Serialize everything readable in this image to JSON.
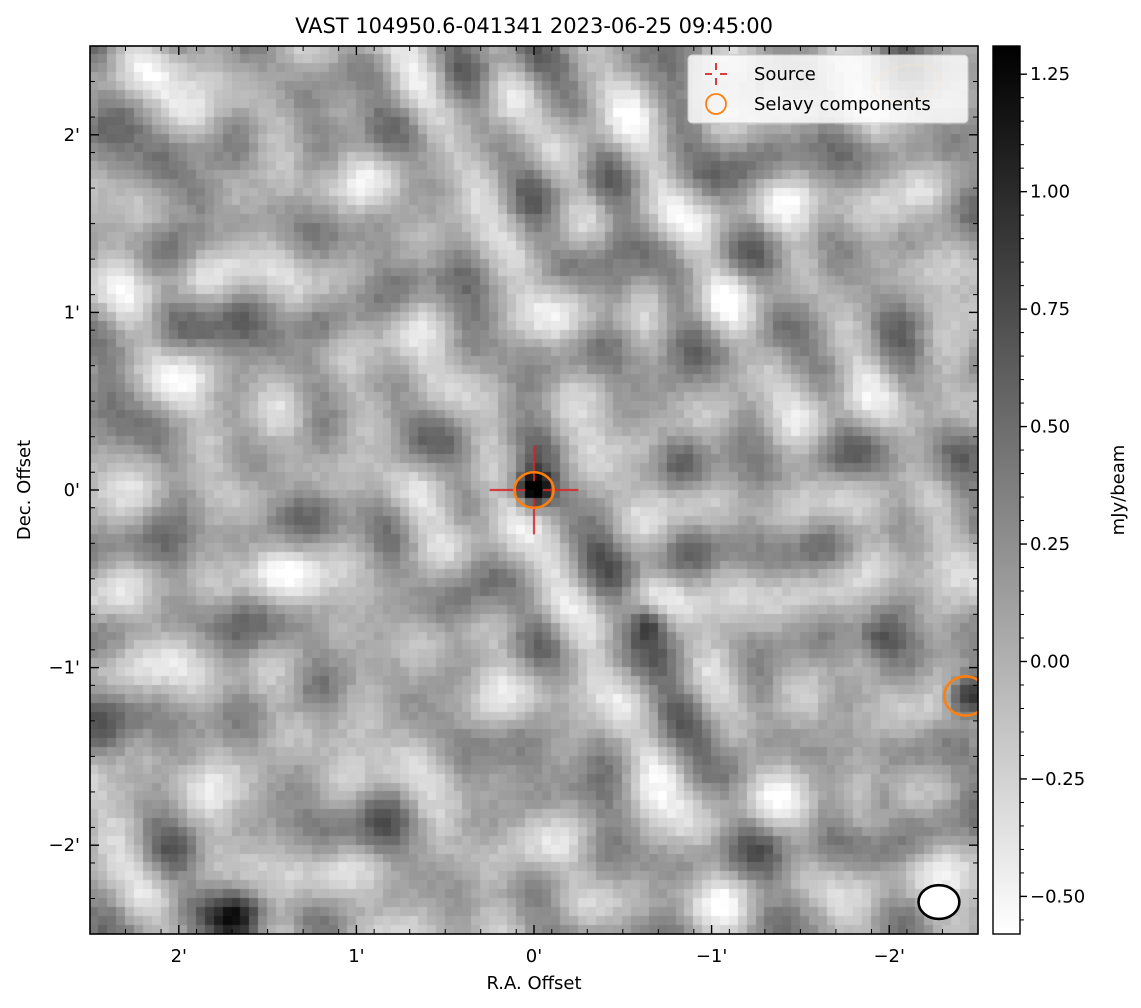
{
  "chart_data": {
    "type": "heatmap",
    "title": "VAST 104950.6-041341 2023-06-25 09:45:00",
    "xlabel": "R.A. Offset",
    "ylabel": "Dec. Offset",
    "xlim_arcmin": [
      2.5,
      -2.5
    ],
    "ylim_arcmin": [
      -2.5,
      2.5
    ],
    "x_ticks": [
      {
        "value": 2,
        "label": "2'"
      },
      {
        "value": 1,
        "label": "1'"
      },
      {
        "value": 0,
        "label": "0'"
      },
      {
        "value": -1,
        "label": "−1'"
      },
      {
        "value": -2,
        "label": "−2'"
      }
    ],
    "y_ticks": [
      {
        "value": 2,
        "label": "2'"
      },
      {
        "value": 1,
        "label": "1'"
      },
      {
        "value": 0,
        "label": "0'"
      },
      {
        "value": -1,
        "label": "−1'"
      },
      {
        "value": -2,
        "label": "−2'"
      }
    ],
    "colorbar": {
      "label": "mJy/beam",
      "range": [
        -0.58,
        1.31
      ],
      "cmap": "gray_r",
      "ticks": [
        {
          "value": 1.25,
          "label": "1.25"
        },
        {
          "value": 1.0,
          "label": "1.00"
        },
        {
          "value": 0.75,
          "label": "0.75"
        },
        {
          "value": 0.5,
          "label": "0.50"
        },
        {
          "value": 0.25,
          "label": "0.25"
        },
        {
          "value": 0.0,
          "label": "0.00"
        },
        {
          "value": -0.25,
          "label": "−0.25"
        },
        {
          "value": -0.5,
          "label": "−0.50"
        }
      ]
    },
    "legend": {
      "placement": "upper-right",
      "entries": [
        {
          "label": "Source",
          "marker": "plus",
          "color": "#d62728"
        },
        {
          "label": "Selavy components",
          "marker": "circle",
          "color": "#ff7f0e"
        }
      ]
    },
    "source": {
      "ra_offset": 0.0,
      "dec_offset": 0.0,
      "color": "#d62728",
      "arm_length": 0.25
    },
    "selavy_components": [
      {
        "ra_offset": 0.0,
        "dec_offset": 0.0,
        "width": 0.22,
        "height": 0.2,
        "angle": 0,
        "color": "#ff7f0e"
      },
      {
        "ra_offset": -2.43,
        "dec_offset": -1.16,
        "width": 0.24,
        "height": 0.22,
        "angle": 0,
        "color": "#ff7f0e"
      },
      {
        "ra_offset": -2.1,
        "dec_offset": 2.29,
        "width": 0.38,
        "height": 0.2,
        "angle": 10,
        "color": "#ff7f0e",
        "faded": true
      }
    ],
    "beam": {
      "ra_offset": -2.28,
      "dec_offset": -2.32,
      "width": 0.23,
      "height": 0.19,
      "angle": 0
    },
    "bright_blobs": [
      {
        "ra_offset": 0.0,
        "dec_offset": 0.0,
        "value": 1.31,
        "sigma": 0.07
      },
      {
        "ra_offset": -2.45,
        "dec_offset": -1.16,
        "value": 1.1,
        "sigma": 0.08
      },
      {
        "ra_offset": -0.65,
        "dec_offset": -0.75,
        "value": 0.85,
        "sigma": 0.07
      },
      {
        "ra_offset": -0.85,
        "dec_offset": 0.15,
        "value": 0.45,
        "sigma": 0.1
      },
      {
        "ra_offset": -1.95,
        "dec_offset": -1.75,
        "value": 0.55,
        "sigma": 0.08
      },
      {
        "ra_offset": 1.65,
        "dec_offset": -2.4,
        "value": 0.6,
        "sigma": 0.09
      },
      {
        "ra_offset": 1.85,
        "dec_offset": 1.65,
        "value": 0.5,
        "sigma": 0.09
      },
      {
        "ra_offset": -0.5,
        "dec_offset": 1.1,
        "value": 0.5,
        "sigma": 0.1
      },
      {
        "ra_offset": -1.95,
        "dec_offset": -0.85,
        "value": 0.45,
        "sigma": 0.08
      },
      {
        "ra_offset": 1.2,
        "dec_offset": 0.95,
        "value": 0.4,
        "sigma": 0.09
      }
    ]
  }
}
